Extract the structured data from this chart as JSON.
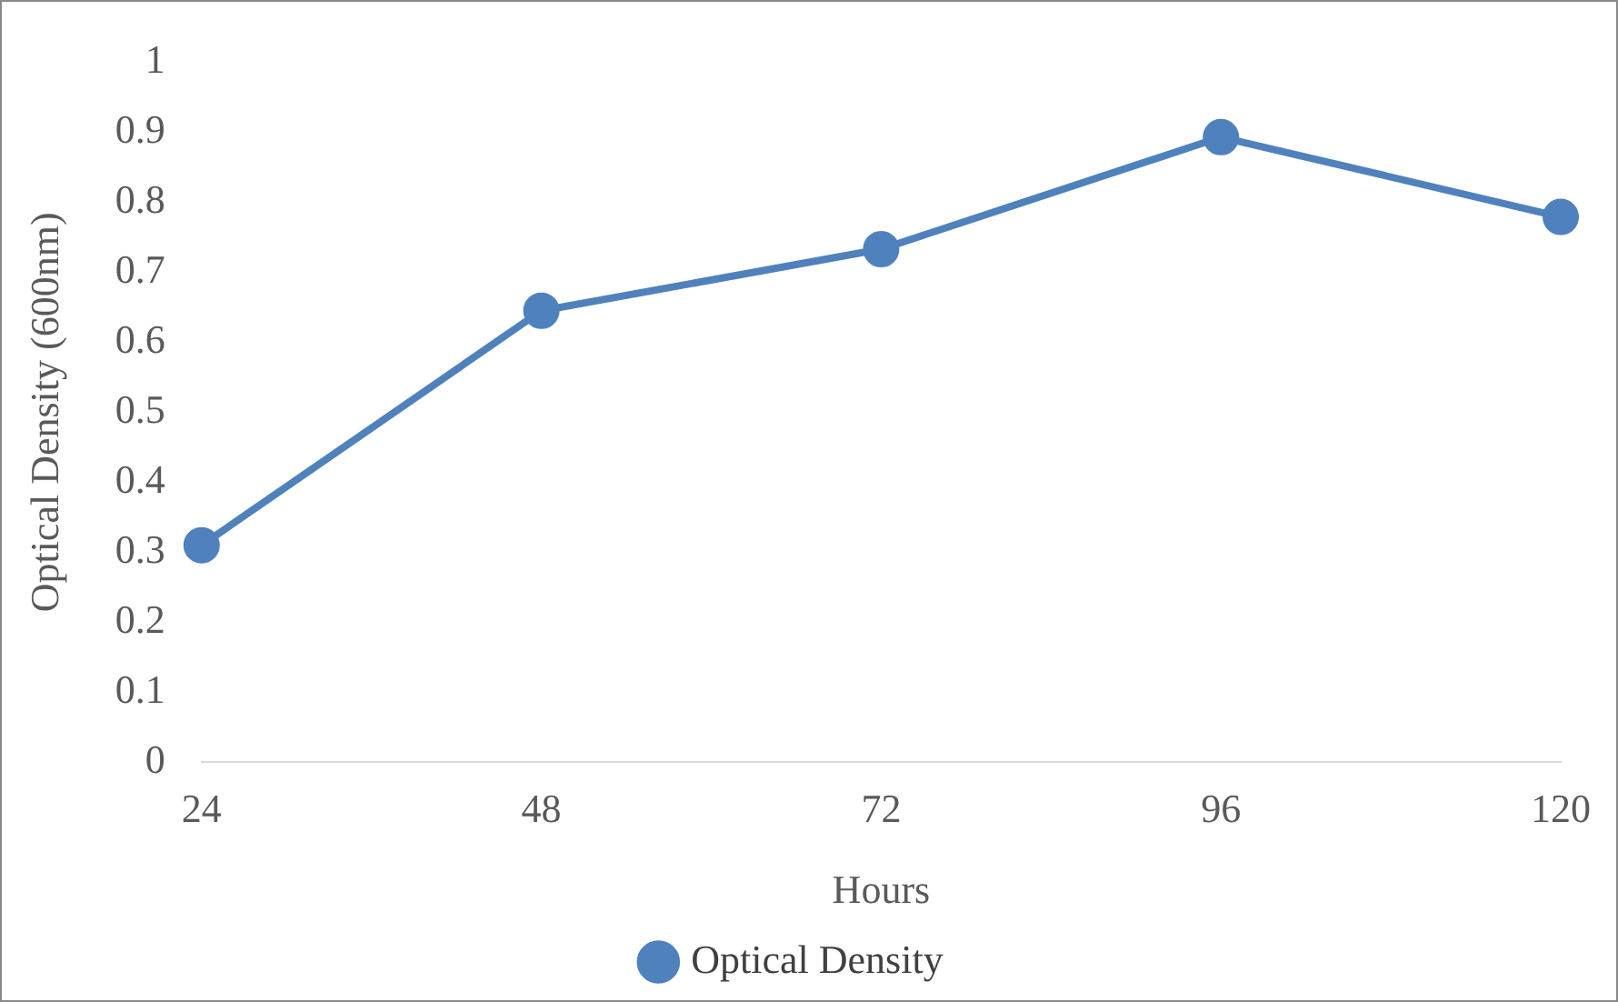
{
  "chart_data": {
    "type": "line",
    "xlabel": "Hours",
    "ylabel": "Optical Density (600nm)",
    "categories": [
      "24",
      "48",
      "72",
      "96",
      "120"
    ],
    "series": [
      {
        "name": "Optical Density",
        "color": "#4f81bd",
        "values": [
          0.31,
          0.645,
          0.733,
          0.893,
          0.779
        ]
      }
    ],
    "ylim": [
      0,
      1
    ],
    "yticks": [
      0,
      0.1,
      0.2,
      0.3,
      0.4,
      0.5,
      0.6,
      0.7,
      0.8,
      0.9,
      1
    ],
    "grid": false,
    "legend": "bottom",
    "marker": "circle",
    "line_style": "solid"
  }
}
